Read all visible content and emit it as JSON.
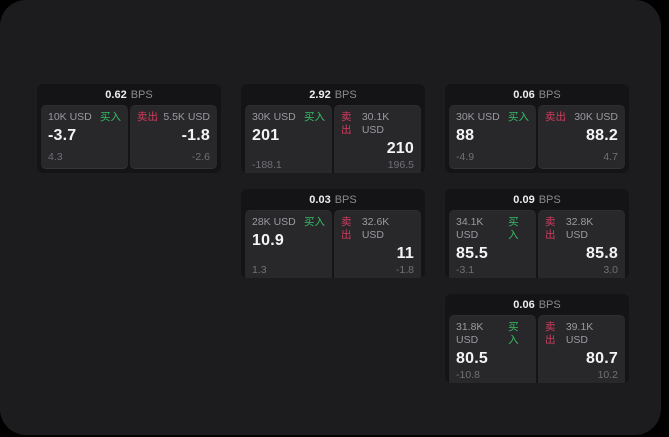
{
  "labels": {
    "bps_unit": "BPS",
    "buy": "买入",
    "sell": "卖出"
  },
  "colors": {
    "buy_green": "#34be64",
    "sell_red": "#d23b5e",
    "panel_bg": "#1c1c1e",
    "card_bg": "#141416",
    "pane_bg": "#28282b"
  },
  "cards": [
    {
      "bps": "0.62",
      "buy": {
        "amount": "10K USD",
        "value": "-3.7",
        "sub": "4.3"
      },
      "sell": {
        "amount": "5.5K USD",
        "value": "-1.8",
        "sub": "-2.6"
      }
    },
    {
      "bps": "2.92",
      "buy": {
        "amount": "30K USD",
        "value": "201",
        "sub": "-188.1"
      },
      "sell": {
        "amount": "30.1K USD",
        "value": "210",
        "sub": "196.5"
      }
    },
    {
      "bps": "0.06",
      "buy": {
        "amount": "30K USD",
        "value": "88",
        "sub": "-4.9"
      },
      "sell": {
        "amount": "30K USD",
        "value": "88.2",
        "sub": "4.7"
      }
    },
    {
      "bps": "0.03",
      "buy": {
        "amount": "28K USD",
        "value": "10.9",
        "sub": "1.3"
      },
      "sell": {
        "amount": "32.6K USD",
        "value": "11",
        "sub": "-1.8"
      }
    },
    {
      "bps": "0.09",
      "buy": {
        "amount": "34.1K USD",
        "value": "85.5",
        "sub": "-3.1"
      },
      "sell": {
        "amount": "32.8K USD",
        "value": "85.8",
        "sub": "3.0"
      }
    },
    {
      "bps": "0.06",
      "buy": {
        "amount": "31.8K USD",
        "value": "80.5",
        "sub": "-10.8"
      },
      "sell": {
        "amount": "39.1K USD",
        "value": "80.7",
        "sub": "10.2"
      }
    }
  ]
}
